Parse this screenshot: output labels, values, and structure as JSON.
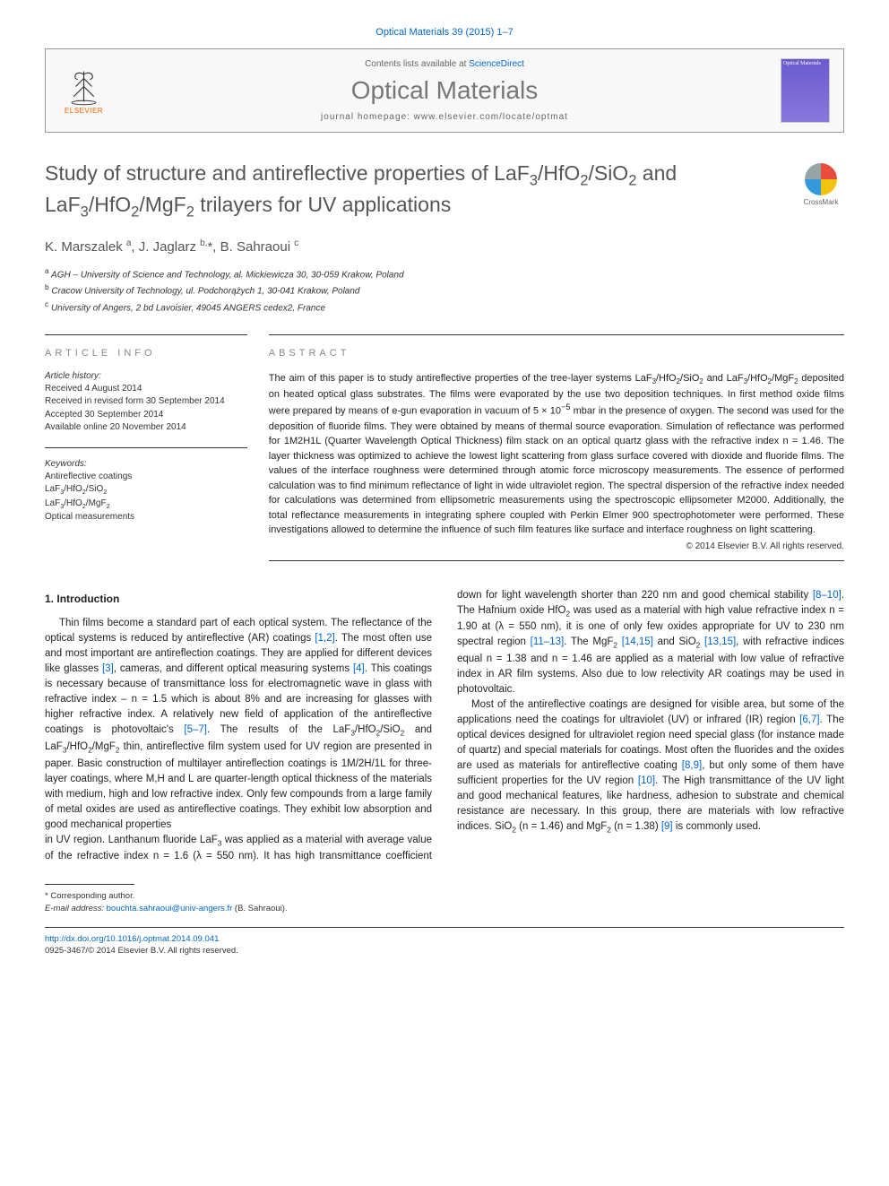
{
  "journal_ref": "Optical Materials 39 (2015) 1–7",
  "header": {
    "contents_text": "Contents lists available at ",
    "contents_link": "ScienceDirect",
    "journal_name": "Optical Materials",
    "homepage_label": "journal homepage: www.elsevier.com/locate/optmat",
    "publisher": "ELSEVIER",
    "cover_title": "Optical Materials"
  },
  "article": {
    "title_html": "Study of structure and antireflective properties of LaF<sub>3</sub>/HfO<sub>2</sub>/SiO<sub>2</sub> and LaF<sub>3</sub>/HfO<sub>2</sub>/MgF<sub>2</sub> trilayers for UV applications",
    "crossmark": "CrossMark",
    "authors_html": "K. Marszalek <sup>a</sup>, J. Jaglarz <sup>b,</sup>*, B. Sahraoui <sup>c</sup>",
    "affiliations": [
      "<sup>a</sup> AGH – University of Science and Technology, al. Mickiewicza 30, 30-059 Krakow, Poland",
      "<sup>b</sup> Cracow University of Technology, ul. Podchorążych 1, 30-041 Krakow, Poland",
      "<sup>c</sup> University of Angers, 2 bd Lavoisier, 49045 ANGERS cedex2, France"
    ]
  },
  "info": {
    "header": "ARTICLE INFO",
    "history_label": "Article history:",
    "history": [
      "Received 4 August 2014",
      "Received in revised form 30 September 2014",
      "Accepted 30 September 2014",
      "Available online 20 November 2014"
    ],
    "keywords_label": "Keywords:",
    "keywords": [
      "Antireflective coatings",
      "LaF<sub>3</sub>/HfO<sub>2</sub>/SiO<sub>2</sub>",
      "LaF<sub>3</sub>/HfO<sub>2</sub>/MgF<sub>2</sub>",
      "Optical measurements"
    ]
  },
  "abstract": {
    "header": "ABSTRACT",
    "text_html": "The aim of this paper is to study antireflective properties of the tree-layer systems LaF<sub>3</sub>/HfO<sub>2</sub>/SiO<sub>2</sub> and LaF<sub>3</sub>/HfO<sub>2</sub>/MgF<sub>2</sub> deposited on heated optical glass substrates. The films were evaporated by the use two deposition techniques. In first method oxide films were prepared by means of e-gun evaporation in vacuum of 5 × 10<sup>−5</sup> mbar in the presence of oxygen. The second was used for the deposition of fluoride films. They were obtained by means of thermal source evaporation. Simulation of reflectance was performed for 1M2H1L (Quarter Wavelength Optical Thickness) film stack on an optical quartz glass with the refractive index n = 1.46. The layer thickness was optimized to achieve the lowest light scattering from glass surface covered with dioxide and fluoride films. The values of the interface roughness were determined through atomic force microscopy measurements. The essence of performed calculation was to find minimum reflectance of light in wide ultraviolet region. The spectral dispersion of the refractive index needed for calculations was determined from ellipsometric measurements using the spectroscopic ellipsometer M2000. Additionally, the total reflectance measurements in integrating sphere coupled with Perkin Elmer 900 spectrophotometer were performed. These investigations allowed to determine the influence of such film features like surface and interface roughness on light scattering.",
    "copyright": "© 2014 Elsevier B.V. All rights reserved."
  },
  "body": {
    "section_number": "1.",
    "section_title": "Introduction",
    "para1_html": "Thin films become a standard part of each optical system. The reflectance of the optical systems is reduced by antireflective (AR) coatings <span class='cite'>[1,2]</span>. The most often use and most important are antireflection coatings. They are applied for different devices like glasses <span class='cite'>[3]</span>, cameras, and different optical measuring systems <span class='cite'>[4]</span>. This coatings is necessary because of transmittance loss for electromagnetic wave in glass with refractive index – n = 1.5 which is about 8% and are increasing for glasses with higher refractive index. A relatively new field of application of the antireflective coatings is photovoltaic's <span class='cite'>[5–7]</span>. The results of the LaF<sub>3</sub>/HfO<sub>2</sub>/SiO<sub>2</sub> and LaF<sub>3</sub>/HfO<sub>2</sub>/MgF<sub>2</sub> thin, antireflective film system used for UV region are presented in paper. Basic construction of multilayer antireflection coatings is 1M/2H/1L for three-layer coatings, where M,H and L are quarter-length optical thickness of the materials with medium, high and low refractive index. Only few compounds from a large family of metal oxides are used as antireflective coatings. They exhibit low absorption and good mechanical properties",
    "para2_html": "in UV region. Lanthanum fluoride LaF<sub>3</sub> was applied as a material with average value of the refractive index n = 1.6 (λ = 550 nm). It has high transmittance coefficient down for light wavelength shorter than 220 nm and good chemical stability <span class='cite'>[8–10]</span>. The Hafnium oxide HfO<sub>2</sub> was used as a material with high value refractive index n = 1.90 at (λ = 550 nm), it is one of only few oxides appropriate for UV to 230 nm spectral region <span class='cite'>[11–13]</span>. The MgF<sub>2</sub> <span class='cite'>[14,15]</span> and SiO<sub>2</sub> <span class='cite'>[13,15]</span>, with refractive indices equal n = 1.38 and n = 1.46 are applied as a material with low value of refractive index in AR film systems. Also due to low relectivity AR coatings may be used in photovoltaic.",
    "para3_html": "Most of the antireflective coatings are designed for visible area, but some of the applications need the coatings for ultraviolet (UV) or infrared (IR) region <span class='cite'>[6,7]</span>. The optical devices designed for ultraviolet region need special glass (for instance made of quartz) and special materials for coatings. Most often the fluorides and the oxides are used as materials for antireflective coating <span class='cite'>[8,9]</span>, but only some of them have sufficient properties for the UV region <span class='cite'>[10]</span>. The High transmittance of the UV light and good mechanical features, like hardness, adhesion to substrate and chemical resistance are necessary. In this group, there are materials with low refractive indices. SiO<sub>2</sub> (n = 1.46) and MgF<sub>2</sub> (n = 1.38) <span class='cite'>[9]</span> is commonly used."
  },
  "footnote": {
    "corresponding": "* Corresponding author.",
    "email_label": "E-mail address: ",
    "email": "bouchta.sahraoui@univ-angers.fr",
    "email_who": " (B. Sahraoui)."
  },
  "doi": {
    "url": "http://dx.doi.org/10.1016/j.optmat.2014.09.041",
    "issn_line": "0925-3467/© 2014 Elsevier B.V. All rights reserved."
  },
  "colors": {
    "link": "#0066cc",
    "accent": "#ff6600",
    "heading_gray": "#777",
    "text": "#222"
  }
}
